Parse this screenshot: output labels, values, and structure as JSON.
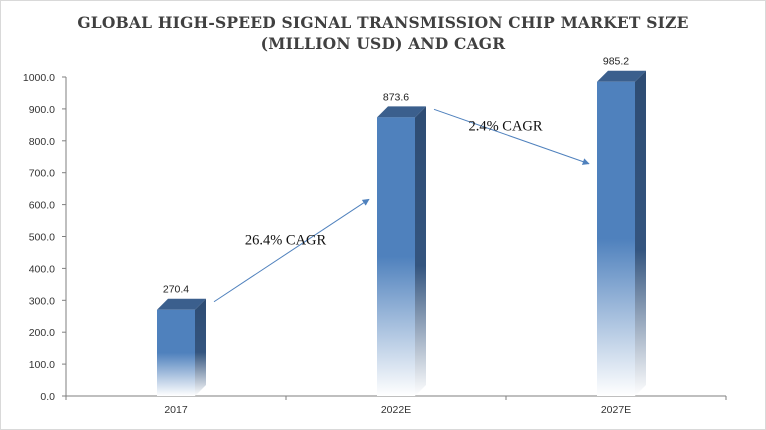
{
  "chart_data": {
    "type": "bar",
    "title_line1": "GLOBAL HIGH-SPEED SIGNAL TRANSMISSION CHIP MARKET SIZE",
    "title_line2": "(MILLION USD) AND CAGR",
    "categories": [
      "2017",
      "2022E",
      "2027E"
    ],
    "values": [
      270.4,
      873.6,
      985.2
    ],
    "data_labels": [
      "270.4",
      "873.6",
      "985.2"
    ],
    "y_ticks": [
      "0.0",
      "100.0",
      "200.0",
      "300.0",
      "400.0",
      "500.0",
      "600.0",
      "700.0",
      "800.0",
      "900.0",
      "1000.0"
    ],
    "ylim": [
      0,
      1000
    ],
    "grid": false,
    "legend": "none",
    "annotations": [
      {
        "text": "26.4% CAGR",
        "from": "2017",
        "to": "2022E"
      },
      {
        "text": "2.4% CAGR",
        "from": "2022E",
        "to": "2027E"
      }
    ],
    "colors": {
      "bar_front": "#4f81bd",
      "bar_side": "#2e4c73",
      "bar_top": "#3b5f8d",
      "arrow": "#4f81bd",
      "axis": "#7f7f7f"
    }
  }
}
